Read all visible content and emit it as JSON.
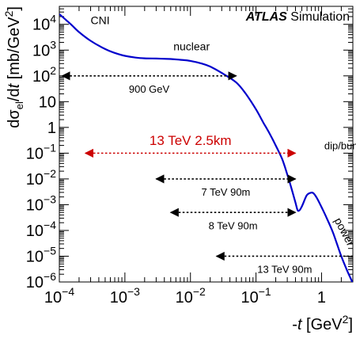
{
  "chart_data": {
    "type": "line",
    "title": "",
    "brand": "ATLAS",
    "subtitle": "Simulation",
    "xscale": "log",
    "yscale": "log",
    "xlim": [
      0.0001,
      3
    ],
    "ylim": [
      1e-06,
      50000
    ],
    "grid": false,
    "xlabel": {
      "prefix": "-",
      "var": "t",
      "unit_open": " [GeV",
      "unit_sup": "2",
      "unit_close": "]"
    },
    "ylabel": {
      "d1": "dσ",
      "sub": "el",
      "slash": "/d",
      "var": "t",
      "unit_open": " [mb/GeV",
      "unit_sup": "2",
      "unit_close": "]"
    },
    "x_ticks": [
      {
        "value": 0.0001,
        "base": "10",
        "exp": "−4"
      },
      {
        "value": 0.001,
        "base": "10",
        "exp": "−3"
      },
      {
        "value": 0.01,
        "base": "10",
        "exp": "−2"
      },
      {
        "value": 0.1,
        "base": "10",
        "exp": "−1"
      },
      {
        "value": 1,
        "base": "1",
        "exp": ""
      }
    ],
    "y_ticks": [
      {
        "value": 1e-06,
        "base": "10",
        "exp": "−6"
      },
      {
        "value": 1e-05,
        "base": "10",
        "exp": "−5"
      },
      {
        "value": 0.0001,
        "base": "10",
        "exp": "−4"
      },
      {
        "value": 0.001,
        "base": "10",
        "exp": "−3"
      },
      {
        "value": 0.01,
        "base": "10",
        "exp": "−2"
      },
      {
        "value": 0.1,
        "base": "10",
        "exp": "−1"
      },
      {
        "value": 1,
        "base": "1",
        "exp": ""
      },
      {
        "value": 10,
        "base": "10",
        "exp": ""
      },
      {
        "value": 100,
        "base": "10",
        "exp": "2"
      },
      {
        "value": 1000,
        "base": "10",
        "exp": "3"
      },
      {
        "value": 10000,
        "base": "10",
        "exp": "4"
      }
    ],
    "series": [
      {
        "color": "#0000cc",
        "x": [
          0.0001,
          0.00015,
          0.0002,
          0.0003,
          0.0005,
          0.0007,
          0.001,
          0.0015,
          0.002,
          0.003,
          0.005,
          0.007,
          0.01,
          0.015,
          0.02,
          0.03,
          0.05,
          0.07,
          0.1,
          0.13,
          0.16,
          0.2,
          0.25,
          0.3,
          0.35,
          0.4,
          0.43,
          0.46,
          0.5,
          0.55,
          0.6,
          0.68,
          0.75,
          0.85,
          1.0,
          1.2,
          1.5,
          2.0,
          2.5,
          3.0
        ],
        "y": [
          25000,
          10000,
          5000,
          2300,
          1100,
          780,
          600,
          510,
          480,
          470,
          450,
          420,
          380,
          300,
          230,
          130,
          55,
          20,
          5,
          1.5,
          0.6,
          0.2,
          0.06,
          0.015,
          0.004,
          0.0012,
          0.00062,
          0.0006,
          0.00085,
          0.0015,
          0.0024,
          0.0029,
          0.0028,
          0.0018,
          0.0008,
          0.0003,
          8e-05,
          1e-05,
          2.5e-06,
          9e-07
        ]
      }
    ],
    "annotations": [
      {
        "text": "CNI",
        "x": 0.0003,
        "y": 10000,
        "color": "#000000"
      },
      {
        "text": "nuclear",
        "x": 0.0055,
        "y": 1000,
        "color": "#000000"
      },
      {
        "text": "dip/bump",
        "x": 1.1,
        "y": 0.14,
        "color": "#000000"
      },
      {
        "text": "power",
        "x": 1.55,
        "y": 0.00025,
        "color": "#000000"
      }
    ],
    "ranges": [
      {
        "label": "900 GeV",
        "x0": 0.00011,
        "x1": 0.05,
        "y": 100,
        "color": "#000000",
        "arrow": "both",
        "dash": true,
        "label_y": 32
      },
      {
        "label": "13 TeV 2.5km",
        "x0": 0.00025,
        "x1": 0.4,
        "y": 0.1,
        "color": "#cc0000",
        "arrow": "both",
        "dash": true,
        "label_y": 0.32
      },
      {
        "label": "7 TeV 90m",
        "x0": 0.003,
        "x1": 0.4,
        "y": 0.01,
        "color": "#000000",
        "arrow": "both",
        "dash": true,
        "label_y": 0.0032
      },
      {
        "label": "8 TeV 90m",
        "x0": 0.005,
        "x1": 0.4,
        "y": 0.0005,
        "color": "#000000",
        "arrow": "both",
        "dash": true,
        "label_y": 0.00016
      },
      {
        "label": "13 TeV 90m",
        "x0": 0.025,
        "x1": 3,
        "y": 1e-05,
        "color": "#000000",
        "arrow": "left",
        "dash": true,
        "label_y": 3.2e-06
      }
    ]
  }
}
